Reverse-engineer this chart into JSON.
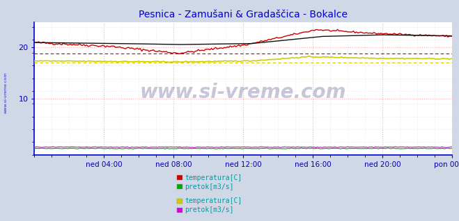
{
  "title": "Pesnica - Zamušani & Gradaščica - Bokalce",
  "title_color": "#0000cc",
  "title_fontsize": 10,
  "bg_color": "#d0d8e8",
  "plot_bg_color": "#ffffff",
  "xlim": [
    0,
    288
  ],
  "ylim": [
    -1,
    25
  ],
  "yticks": [
    10,
    20
  ],
  "xtick_labels": [
    "ned 04:00",
    "ned 08:00",
    "ned 12:00",
    "ned 16:00",
    "ned 20:00",
    "pon 00:00"
  ],
  "xtick_positions": [
    48,
    96,
    144,
    192,
    240,
    288
  ],
  "grid_color_major": "#ffaaaa",
  "grid_color_minor": "#e0e0e0",
  "axis_color": "#0000cc",
  "tick_color": "#0000aa",
  "watermark_text": "www.si-vreme.com",
  "side_text": "www.si-vreme.com",
  "legend_text_color": "#009999",
  "legend_font": "monospace",
  "legend_fontsize": 7,
  "pesnica_avg": 18.8,
  "gradascica_avg": 17.1,
  "colors": {
    "pesnica_temp": "#cc0000",
    "pesnica_flow": "#00aa00",
    "gradascica_temp": "#cccc00",
    "gradascica_flow": "#dd00dd",
    "black_line": "#111111"
  }
}
